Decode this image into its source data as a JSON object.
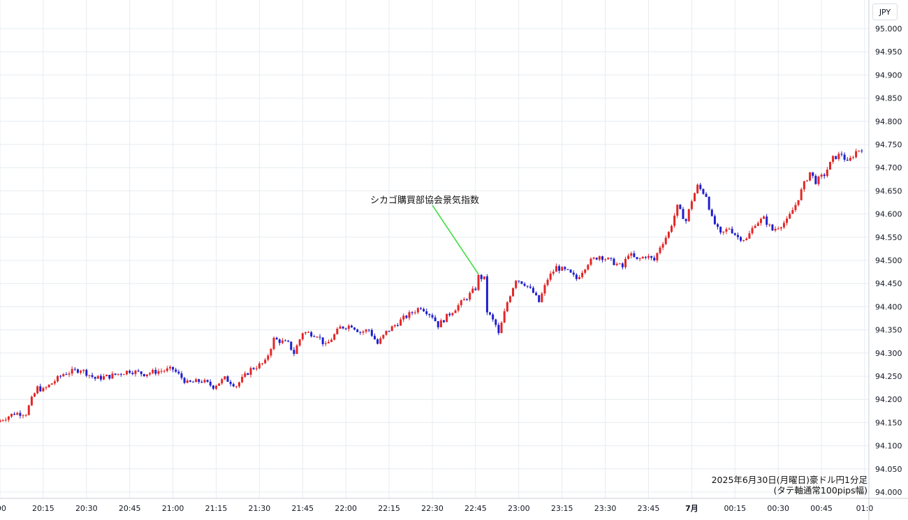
{
  "currency": "JPY",
  "caption": {
    "line1": "2025年6月30日(月曜日)豪ドル円1分足",
    "line2": "(タテ軸通常100pips幅)"
  },
  "annotation": {
    "text": "シカゴ購買部協会景気指数",
    "time": "22:46",
    "price": 94.47,
    "line_color": "#33dd33"
  },
  "colors": {
    "up": "#e32626",
    "down": "#1f1fcc",
    "grid": "#e6ecf0",
    "axis_text": "#131722"
  },
  "chart_data": {
    "type": "candlestick",
    "title": "2025年6月30日(月曜日)豪ドル円1分足",
    "subtitle": "(タテ軸通常100pips幅)",
    "timeframe": "1m",
    "ylim": [
      94.0,
      95.0
    ],
    "yticks": [
      "95.000",
      "94.950",
      "94.900",
      "94.850",
      "94.800",
      "94.750",
      "94.700",
      "94.650",
      "94.600",
      "94.550",
      "94.500",
      "94.450",
      "94.400",
      "94.350",
      "94.300",
      "94.250",
      "94.200",
      "94.150",
      "94.100",
      "94.050",
      "94.000"
    ],
    "xticks": [
      ":00",
      "20:15",
      "20:30",
      "20:45",
      "21:00",
      "21:15",
      "21:30",
      "21:45",
      "22:00",
      "22:15",
      "22:30",
      "22:45",
      "23:00",
      "23:15",
      "23:30",
      "23:45",
      "7月",
      "00:15",
      "00:30",
      "00:45",
      "01:0"
    ],
    "minutes_per_tick": 15,
    "grid": true,
    "anchors": [
      {
        "t": "20:00",
        "p": 94.155
      },
      {
        "t": "20:05",
        "p": 94.17
      },
      {
        "t": "20:09",
        "p": 94.17
      },
      {
        "t": "20:11",
        "p": 94.2
      },
      {
        "t": "20:13",
        "p": 94.225
      },
      {
        "t": "20:15",
        "p": 94.22
      },
      {
        "t": "20:18",
        "p": 94.235
      },
      {
        "t": "20:22",
        "p": 94.255
      },
      {
        "t": "20:28",
        "p": 94.265
      },
      {
        "t": "20:33",
        "p": 94.245
      },
      {
        "t": "20:38",
        "p": 94.25
      },
      {
        "t": "20:45",
        "p": 94.262
      },
      {
        "t": "20:50",
        "p": 94.255
      },
      {
        "t": "20:54",
        "p": 94.26
      },
      {
        "t": "21:00",
        "p": 94.265
      },
      {
        "t": "21:05",
        "p": 94.235
      },
      {
        "t": "21:10",
        "p": 94.24
      },
      {
        "t": "21:14",
        "p": 94.228
      },
      {
        "t": "21:18",
        "p": 94.245
      },
      {
        "t": "21:22",
        "p": 94.23
      },
      {
        "t": "21:27",
        "p": 94.265
      },
      {
        "t": "21:32",
        "p": 94.28
      },
      {
        "t": "21:35",
        "p": 94.33
      },
      {
        "t": "21:40",
        "p": 94.32
      },
      {
        "t": "21:42",
        "p": 94.3
      },
      {
        "t": "21:45",
        "p": 94.345
      },
      {
        "t": "21:50",
        "p": 94.34
      },
      {
        "t": "21:53",
        "p": 94.315
      },
      {
        "t": "21:58",
        "p": 94.355
      },
      {
        "t": "22:02",
        "p": 94.36
      },
      {
        "t": "22:05",
        "p": 94.345
      },
      {
        "t": "22:08",
        "p": 94.35
      },
      {
        "t": "22:11",
        "p": 94.32
      },
      {
        "t": "22:14",
        "p": 94.345
      },
      {
        "t": "22:20",
        "p": 94.375
      },
      {
        "t": "22:26",
        "p": 94.4
      },
      {
        "t": "22:30",
        "p": 94.38
      },
      {
        "t": "22:32",
        "p": 94.36
      },
      {
        "t": "22:36",
        "p": 94.385
      },
      {
        "t": "22:42",
        "p": 94.42
      },
      {
        "t": "22:45",
        "p": 94.44
      },
      {
        "t": "22:46",
        "p": 94.465
      },
      {
        "t": "22:48",
        "p": 94.46
      },
      {
        "t": "22:49",
        "p": 94.39
      },
      {
        "t": "22:52",
        "p": 94.36
      },
      {
        "t": "22:53",
        "p": 94.34
      },
      {
        "t": "22:56",
        "p": 94.41
      },
      {
        "t": "22:59",
        "p": 94.46
      },
      {
        "t": "23:02",
        "p": 94.45
      },
      {
        "t": "23:05",
        "p": 94.43
      },
      {
        "t": "23:07",
        "p": 94.41
      },
      {
        "t": "23:10",
        "p": 94.46
      },
      {
        "t": "23:13",
        "p": 94.485
      },
      {
        "t": "23:17",
        "p": 94.475
      },
      {
        "t": "23:20",
        "p": 94.46
      },
      {
        "t": "23:24",
        "p": 94.495
      },
      {
        "t": "23:28",
        "p": 94.51
      },
      {
        "t": "23:33",
        "p": 94.495
      },
      {
        "t": "23:36",
        "p": 94.485
      },
      {
        "t": "23:38",
        "p": 94.515
      },
      {
        "t": "23:41",
        "p": 94.5
      },
      {
        "t": "23:44",
        "p": 94.51
      },
      {
        "t": "23:47",
        "p": 94.5
      },
      {
        "t": "23:49",
        "p": 94.53
      },
      {
        "t": "23:52",
        "p": 94.56
      },
      {
        "t": "23:55",
        "p": 94.615
      },
      {
        "t": "23:58",
        "p": 94.585
      },
      {
        "t": "00:00",
        "p": 94.63
      },
      {
        "t": "00:02",
        "p": 94.66
      },
      {
        "t": "00:05",
        "p": 94.64
      },
      {
        "t": "00:07",
        "p": 94.59
      },
      {
        "t": "00:10",
        "p": 94.555
      },
      {
        "t": "00:13",
        "p": 94.57
      },
      {
        "t": "00:16",
        "p": 94.55
      },
      {
        "t": "00:19",
        "p": 94.545
      },
      {
        "t": "00:22",
        "p": 94.58
      },
      {
        "t": "00:25",
        "p": 94.59
      },
      {
        "t": "00:28",
        "p": 94.565
      },
      {
        "t": "00:33",
        "p": 94.585
      },
      {
        "t": "00:36",
        "p": 94.62
      },
      {
        "t": "00:39",
        "p": 94.665
      },
      {
        "t": "00:41",
        "p": 94.69
      },
      {
        "t": "00:43",
        "p": 94.67
      },
      {
        "t": "00:46",
        "p": 94.685
      },
      {
        "t": "00:49",
        "p": 94.72
      },
      {
        "t": "00:52",
        "p": 94.73
      },
      {
        "t": "00:54",
        "p": 94.71
      },
      {
        "t": "00:57",
        "p": 94.735
      },
      {
        "t": "00:59",
        "p": 94.742
      }
    ]
  }
}
